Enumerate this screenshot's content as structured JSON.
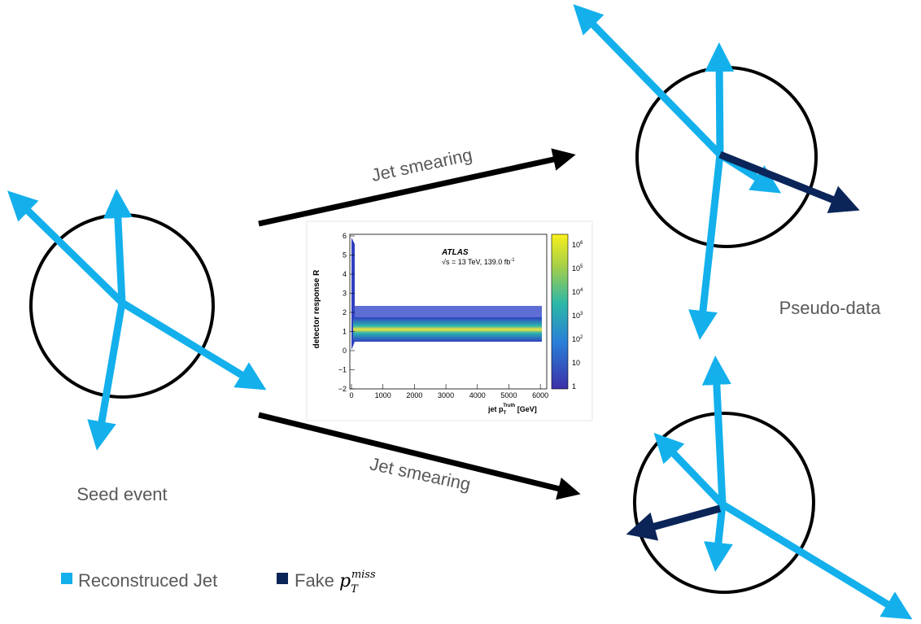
{
  "arrow_labels": [
    "Jet smearing",
    "Jet smearing"
  ],
  "seed_label": "Seed event",
  "pseudo_label": "Pseudo-data",
  "legend": {
    "items": [
      {
        "label": "Reconstruced Jet"
      },
      {
        "label": "Fake",
        "symbol": "p",
        "sub": "T",
        "sup": "miss"
      }
    ]
  },
  "inset": {
    "y_label": "detector response R",
    "x_label": {
      "text": "jet p",
      "sub": "T",
      "sup": "Truth",
      "unit": "[GeV]"
    },
    "experiment": "ATLAS",
    "energy": {
      "text": "√s = 13 TeV, 139.0 fb",
      "sup": "-1"
    },
    "yticks": [
      "6",
      "5",
      "4",
      "3",
      "2",
      "1",
      "0",
      "−1",
      "−2"
    ],
    "xticks": [
      "0",
      "1000",
      "2000",
      "3000",
      "4000",
      "5000",
      "6000"
    ],
    "colorbar_ticks": [
      {
        "base": "10",
        "exp": "6"
      },
      {
        "base": "10",
        "exp": "5"
      },
      {
        "base": "10",
        "exp": "4"
      },
      {
        "base": "10",
        "exp": "3"
      },
      {
        "base": "10",
        "exp": "2"
      },
      {
        "base": "10"
      },
      {
        "base": "1"
      }
    ]
  }
}
